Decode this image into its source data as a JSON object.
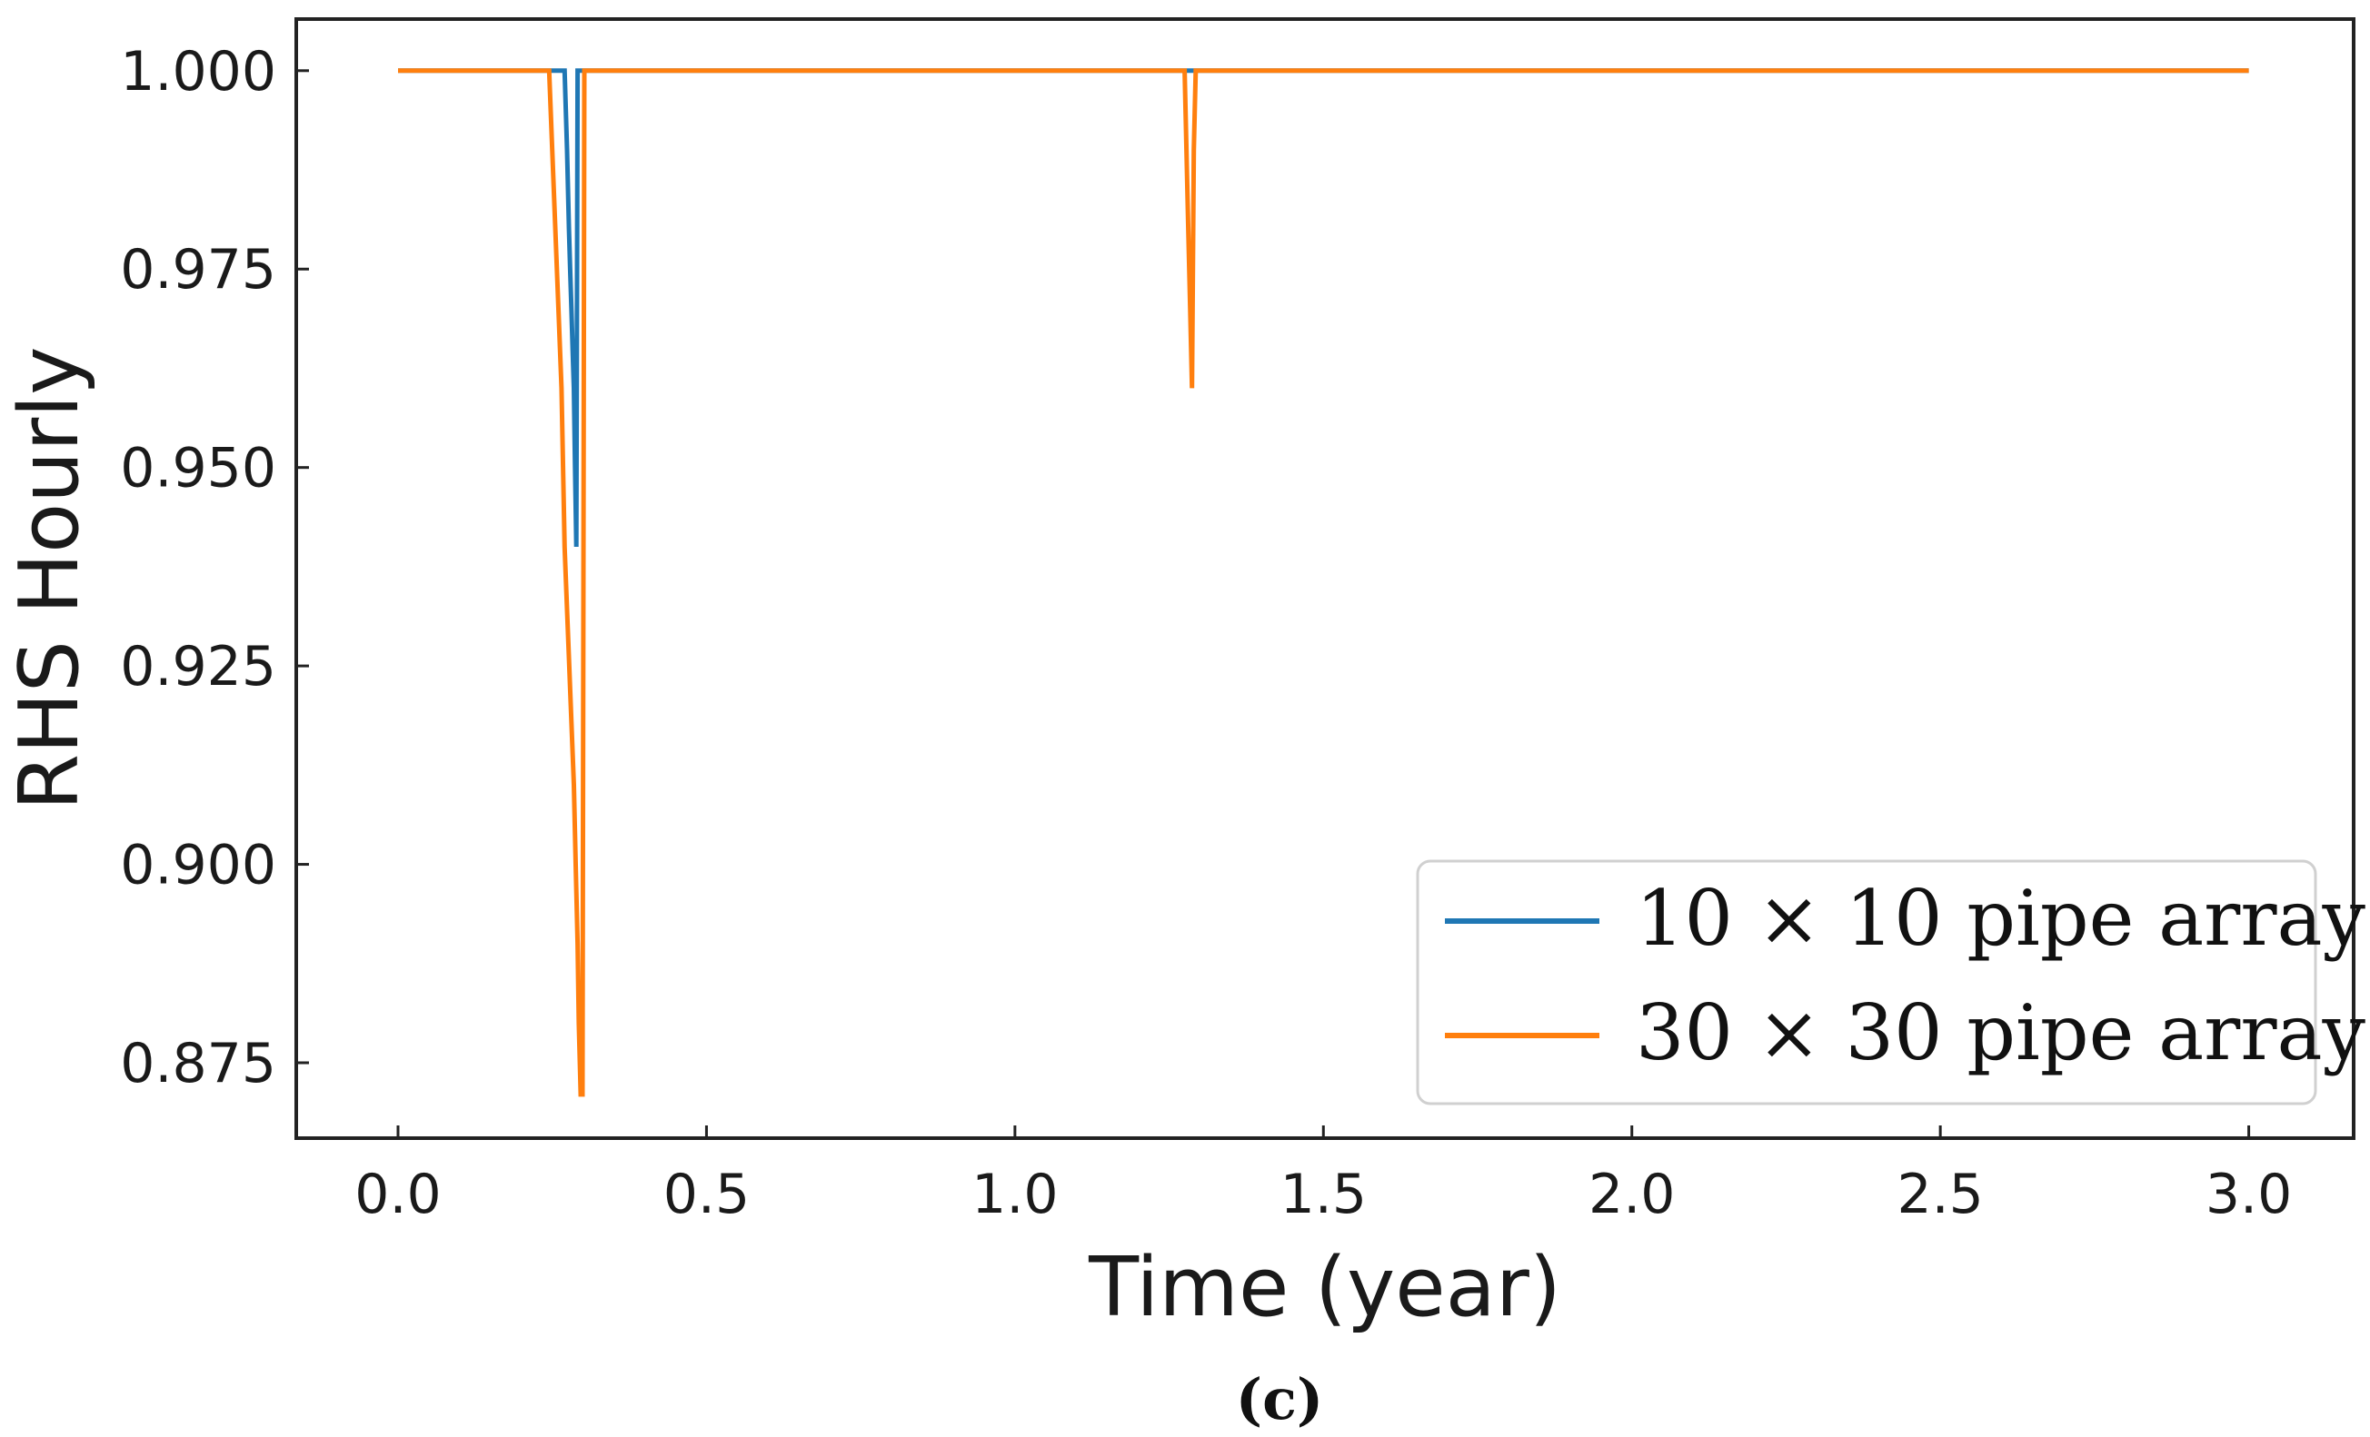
{
  "chart_data": {
    "type": "line",
    "title": "",
    "xlabel": "Time (year)",
    "ylabel": "RHS Hourly",
    "caption": "(c)",
    "xlim": [
      -0.165,
      3.17
    ],
    "ylim": [
      0.8655,
      1.0065
    ],
    "x_ticks": [
      0.0,
      0.5,
      1.0,
      1.5,
      2.0,
      2.5,
      3.0
    ],
    "x_tick_labels": [
      "0.0",
      "0.5",
      "1.0",
      "1.5",
      "2.0",
      "2.5",
      "3.0"
    ],
    "y_ticks": [
      0.875,
      0.9,
      0.925,
      0.95,
      0.975,
      1.0
    ],
    "y_tick_labels": [
      "0.875",
      "0.900",
      "0.925",
      "0.950",
      "0.975",
      "1.000"
    ],
    "grid": false,
    "legend_position": "bottom-right",
    "series": [
      {
        "name": "10 × 10 pipe array",
        "color": "#1f77b4",
        "x": [
          0.0,
          0.27,
          0.274,
          0.277,
          0.279,
          0.281,
          0.283,
          0.285,
          0.287,
          0.289,
          0.291,
          1.28,
          1.285,
          1.29,
          3.0
        ],
        "y": [
          1.0,
          1.0,
          0.99,
          0.98,
          0.975,
          0.97,
          0.965,
          0.96,
          0.95,
          0.94,
          1.0,
          1.0,
          1.0,
          1.0,
          1.0
        ]
      },
      {
        "name": "30 × 30 pipe array",
        "color": "#ff7f0e",
        "x": [
          0.0,
          0.245,
          0.25,
          0.255,
          0.26,
          0.265,
          0.27,
          0.275,
          0.28,
          0.285,
          0.288,
          0.291,
          0.293,
          0.296,
          0.299,
          0.302,
          0.305,
          1.275,
          1.278,
          1.281,
          1.284,
          1.287,
          1.29,
          1.293,
          1.296,
          3.0
        ],
        "y": [
          1.0,
          1.0,
          0.99,
          0.98,
          0.97,
          0.96,
          0.94,
          0.93,
          0.92,
          0.91,
          0.9,
          0.89,
          0.88,
          0.871,
          0.871,
          1.0,
          1.0,
          1.0,
          0.99,
          0.98,
          0.97,
          0.96,
          0.99,
          1.0,
          1.0,
          1.0
        ]
      }
    ]
  }
}
